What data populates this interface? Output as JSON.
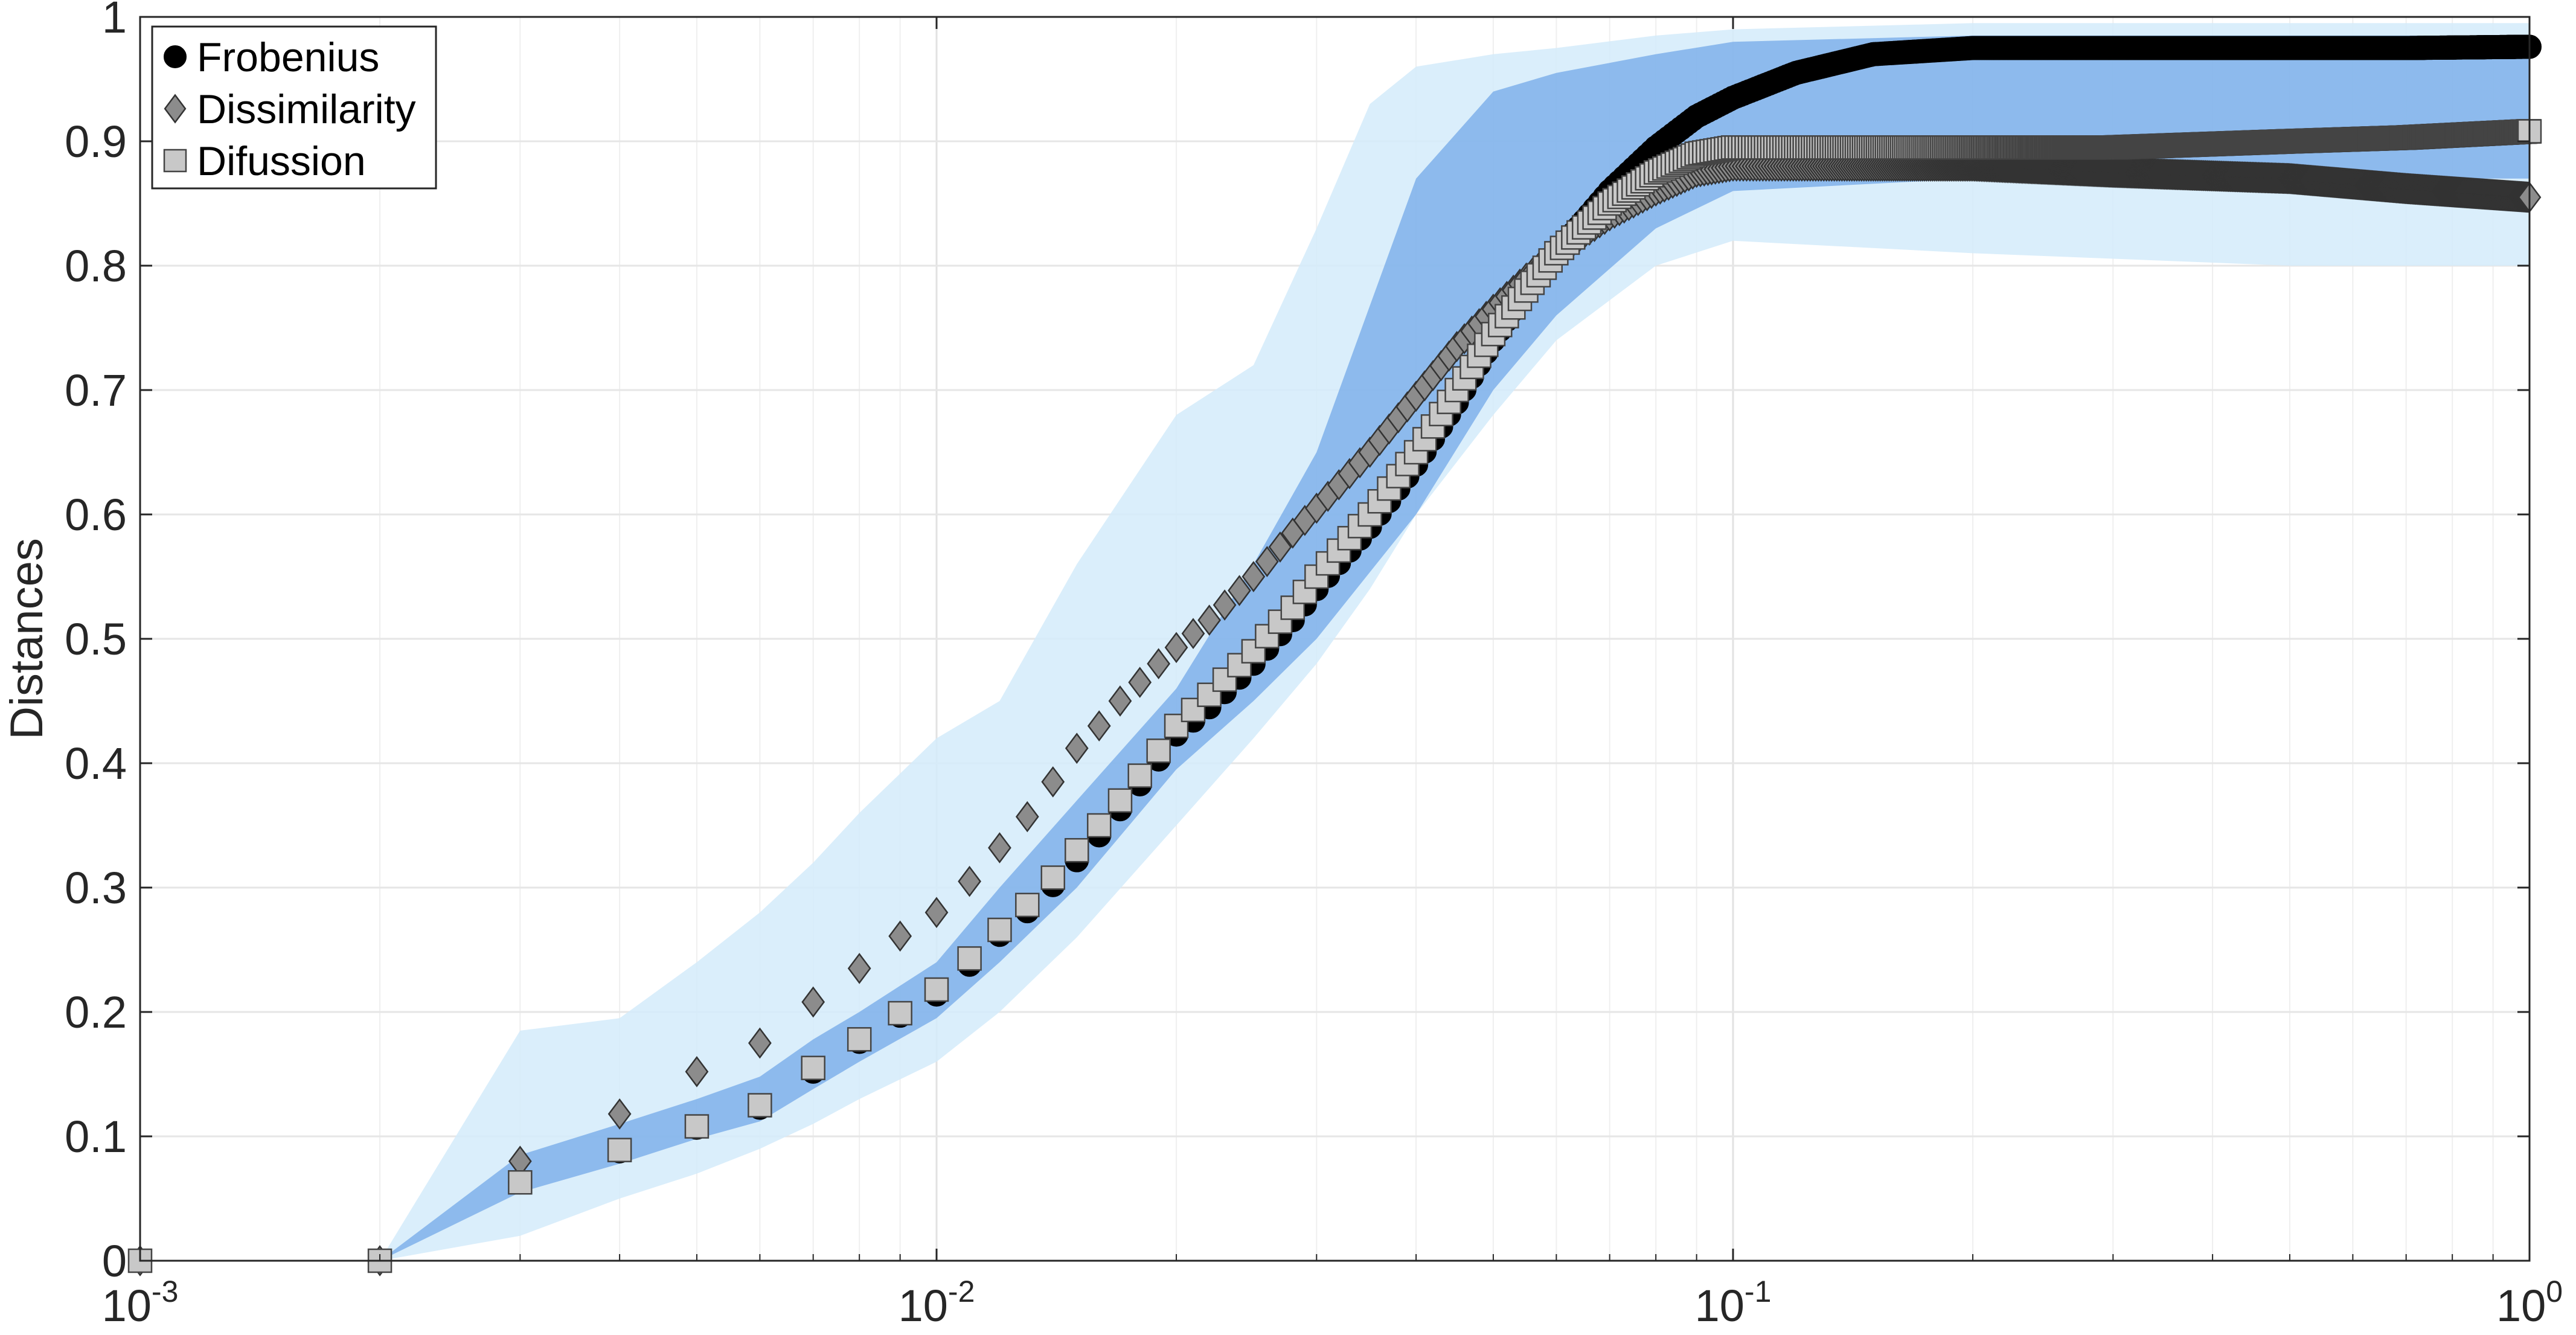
{
  "chart_data": {
    "type": "scatter",
    "xscale": "log",
    "xlim": [
      0.001,
      1
    ],
    "ylim": [
      0,
      1
    ],
    "xlabel": "",
    "ylabel": "Distances",
    "grid": true,
    "legend_position": "top-left",
    "x_ticks": [
      {
        "base": "10",
        "exp": "-3",
        "value": 0.001
      },
      {
        "base": "10",
        "exp": "-2",
        "value": 0.01
      },
      {
        "base": "10",
        "exp": "-1",
        "value": 0.1
      },
      {
        "base": "10",
        "exp": "0",
        "value": 1
      }
    ],
    "y_ticks": [
      "0",
      "0.1",
      "0.2",
      "0.3",
      "0.4",
      "0.5",
      "0.6",
      "0.7",
      "0.8",
      "0.9",
      "1"
    ],
    "series": [
      {
        "name": "Frobenius",
        "marker": "circle",
        "color": "#000000",
        "points": [
          [
            0.001,
            0
          ],
          [
            0.002,
            0
          ],
          [
            0.003,
            0.063
          ],
          [
            0.004,
            0.088
          ],
          [
            0.005,
            0.107
          ],
          [
            0.006,
            0.123
          ],
          [
            0.007,
            0.152
          ],
          [
            0.008,
            0.176
          ],
          [
            0.009,
            0.197
          ],
          [
            0.01,
            0.214
          ],
          [
            0.011,
            0.238
          ],
          [
            0.012,
            0.262
          ],
          [
            0.013,
            0.281
          ],
          [
            0.014,
            0.302
          ],
          [
            0.015,
            0.322
          ],
          [
            0.016,
            0.342
          ],
          [
            0.017,
            0.363
          ],
          [
            0.018,
            0.383
          ],
          [
            0.019,
            0.403
          ],
          [
            0.02,
            0.423
          ],
          [
            0.022,
            0.445
          ],
          [
            0.025,
            0.48
          ],
          [
            0.028,
            0.515
          ],
          [
            0.03,
            0.54
          ],
          [
            0.035,
            0.59
          ],
          [
            0.04,
            0.64
          ],
          [
            0.045,
            0.69
          ],
          [
            0.05,
            0.74
          ],
          [
            0.055,
            0.78
          ],
          [
            0.06,
            0.81
          ],
          [
            0.07,
            0.86
          ],
          [
            0.08,
            0.895
          ],
          [
            0.09,
            0.92
          ],
          [
            0.1,
            0.935
          ],
          [
            0.12,
            0.955
          ],
          [
            0.15,
            0.97
          ],
          [
            0.2,
            0.975
          ],
          [
            0.3,
            0.975
          ],
          [
            0.5,
            0.975
          ],
          [
            0.7,
            0.975
          ],
          [
            1.0,
            0.976
          ]
        ]
      },
      {
        "name": "Dissimilarity",
        "marker": "diamond",
        "color": "#8c8c8c",
        "points": [
          [
            0.001,
            0
          ],
          [
            0.002,
            0
          ],
          [
            0.003,
            0.08
          ],
          [
            0.004,
            0.118
          ],
          [
            0.005,
            0.152
          ],
          [
            0.006,
            0.175
          ],
          [
            0.007,
            0.208
          ],
          [
            0.008,
            0.235
          ],
          [
            0.009,
            0.261
          ],
          [
            0.01,
            0.28
          ],
          [
            0.011,
            0.305
          ],
          [
            0.012,
            0.332
          ],
          [
            0.013,
            0.357
          ],
          [
            0.014,
            0.385
          ],
          [
            0.015,
            0.412
          ],
          [
            0.016,
            0.43
          ],
          [
            0.017,
            0.45
          ],
          [
            0.018,
            0.465
          ],
          [
            0.019,
            0.48
          ],
          [
            0.02,
            0.493
          ],
          [
            0.022,
            0.515
          ],
          [
            0.025,
            0.55
          ],
          [
            0.028,
            0.585
          ],
          [
            0.03,
            0.605
          ],
          [
            0.035,
            0.65
          ],
          [
            0.04,
            0.695
          ],
          [
            0.045,
            0.735
          ],
          [
            0.05,
            0.765
          ],
          [
            0.055,
            0.79
          ],
          [
            0.06,
            0.81
          ],
          [
            0.07,
            0.84
          ],
          [
            0.08,
            0.86
          ],
          [
            0.09,
            0.875
          ],
          [
            0.1,
            0.88
          ],
          [
            0.15,
            0.88
          ],
          [
            0.2,
            0.88
          ],
          [
            0.3,
            0.875
          ],
          [
            0.5,
            0.87
          ],
          [
            0.7,
            0.862
          ],
          [
            1.0,
            0.855
          ]
        ]
      },
      {
        "name": "Difussion",
        "marker": "square",
        "color": "#c8c8c8",
        "points": [
          [
            0.001,
            0
          ],
          [
            0.002,
            0
          ],
          [
            0.003,
            0.063
          ],
          [
            0.004,
            0.089
          ],
          [
            0.005,
            0.108
          ],
          [
            0.006,
            0.125
          ],
          [
            0.007,
            0.155
          ],
          [
            0.008,
            0.178
          ],
          [
            0.009,
            0.199
          ],
          [
            0.01,
            0.218
          ],
          [
            0.011,
            0.243
          ],
          [
            0.012,
            0.266
          ],
          [
            0.013,
            0.286
          ],
          [
            0.014,
            0.308
          ],
          [
            0.015,
            0.33
          ],
          [
            0.016,
            0.35
          ],
          [
            0.017,
            0.37
          ],
          [
            0.018,
            0.39
          ],
          [
            0.019,
            0.41
          ],
          [
            0.02,
            0.43
          ],
          [
            0.022,
            0.455
          ],
          [
            0.025,
            0.49
          ],
          [
            0.028,
            0.525
          ],
          [
            0.03,
            0.55
          ],
          [
            0.035,
            0.6
          ],
          [
            0.04,
            0.65
          ],
          [
            0.045,
            0.7
          ],
          [
            0.05,
            0.745
          ],
          [
            0.055,
            0.78
          ],
          [
            0.06,
            0.81
          ],
          [
            0.07,
            0.85
          ],
          [
            0.08,
            0.875
          ],
          [
            0.09,
            0.89
          ],
          [
            0.1,
            0.895
          ],
          [
            0.15,
            0.895
          ],
          [
            0.2,
            0.895
          ],
          [
            0.3,
            0.895
          ],
          [
            0.5,
            0.9
          ],
          [
            0.7,
            0.903
          ],
          [
            1.0,
            0.908
          ]
        ]
      }
    ],
    "bands": [
      {
        "color": "#d4ebfa",
        "points": [
          [
            0.002,
            0,
            0
          ],
          [
            0.003,
            0.02,
            0.185
          ],
          [
            0.004,
            0.05,
            0.195
          ],
          [
            0.005,
            0.07,
            0.24
          ],
          [
            0.006,
            0.09,
            0.28
          ],
          [
            0.007,
            0.11,
            0.32
          ],
          [
            0.008,
            0.13,
            0.36
          ],
          [
            0.01,
            0.16,
            0.42
          ],
          [
            0.012,
            0.2,
            0.45
          ],
          [
            0.015,
            0.26,
            0.56
          ],
          [
            0.02,
            0.35,
            0.68
          ],
          [
            0.025,
            0.42,
            0.72
          ],
          [
            0.03,
            0.48,
            0.83
          ],
          [
            0.035,
            0.54,
            0.93
          ],
          [
            0.04,
            0.6,
            0.96
          ],
          [
            0.05,
            0.68,
            0.97
          ],
          [
            0.06,
            0.74,
            0.975
          ],
          [
            0.08,
            0.8,
            0.985
          ],
          [
            0.1,
            0.82,
            0.99
          ],
          [
            0.2,
            0.81,
            0.995
          ],
          [
            0.5,
            0.8,
            0.995
          ],
          [
            1.0,
            0.8,
            0.995
          ]
        ]
      },
      {
        "color": "#7fb0ea",
        "points": [
          [
            0.002,
            0,
            0
          ],
          [
            0.003,
            0.055,
            0.085
          ],
          [
            0.004,
            0.078,
            0.11
          ],
          [
            0.005,
            0.098,
            0.13
          ],
          [
            0.006,
            0.112,
            0.148
          ],
          [
            0.007,
            0.138,
            0.178
          ],
          [
            0.008,
            0.16,
            0.2
          ],
          [
            0.01,
            0.195,
            0.24
          ],
          [
            0.012,
            0.24,
            0.3
          ],
          [
            0.015,
            0.3,
            0.37
          ],
          [
            0.02,
            0.395,
            0.46
          ],
          [
            0.025,
            0.45,
            0.56
          ],
          [
            0.03,
            0.5,
            0.65
          ],
          [
            0.04,
            0.6,
            0.87
          ],
          [
            0.05,
            0.7,
            0.94
          ],
          [
            0.06,
            0.76,
            0.955
          ],
          [
            0.08,
            0.83,
            0.97
          ],
          [
            0.1,
            0.86,
            0.98
          ],
          [
            0.2,
            0.87,
            0.985
          ],
          [
            0.5,
            0.87,
            0.985
          ],
          [
            1.0,
            0.87,
            0.985
          ]
        ]
      }
    ]
  },
  "legend": {
    "items": [
      {
        "label": "Frobenius"
      },
      {
        "label": "Dissimilarity"
      },
      {
        "label": "Difussion"
      }
    ]
  }
}
